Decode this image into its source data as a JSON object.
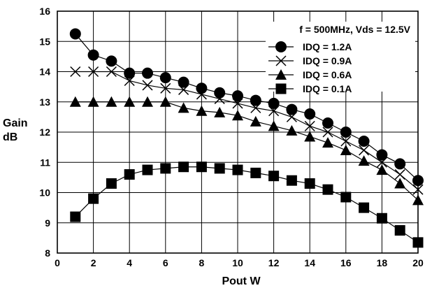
{
  "chart_data": {
    "type": "line",
    "title": "",
    "xlabel": "Pout W",
    "ylabel_line1": "Gain",
    "ylabel_line2": "dB",
    "xlim": [
      0,
      20
    ],
    "ylim": [
      8,
      16
    ],
    "x_ticks": [
      0,
      2,
      4,
      6,
      8,
      10,
      12,
      14,
      16,
      18,
      20
    ],
    "y_ticks": [
      8,
      9,
      10,
      11,
      12,
      13,
      14,
      15,
      16
    ],
    "grid": true,
    "legend_position": "top-right",
    "legend_title": "f = 500MHz, Vds = 12.5V",
    "series": [
      {
        "name": "IDQ = 1.2A",
        "marker": "circle",
        "x": [
          1,
          2,
          3,
          4,
          5,
          6,
          7,
          8,
          9,
          10,
          11,
          12,
          13,
          14,
          15,
          16,
          17,
          18,
          19,
          20
        ],
        "values": [
          15.25,
          14.55,
          14.35,
          13.95,
          13.95,
          13.8,
          13.65,
          13.45,
          13.3,
          13.2,
          13.05,
          12.95,
          12.75,
          12.6,
          12.3,
          12.0,
          11.7,
          11.25,
          10.95,
          10.4
        ]
      },
      {
        "name": "IDQ = 0.9A",
        "marker": "x",
        "x": [
          1,
          2,
          3,
          4,
          5,
          6,
          7,
          8,
          9,
          10,
          11,
          12,
          13,
          14,
          15,
          16,
          17,
          18,
          19,
          20
        ],
        "values": [
          14.0,
          14.0,
          14.0,
          13.7,
          13.55,
          13.45,
          13.4,
          13.25,
          13.1,
          12.95,
          12.8,
          12.7,
          12.5,
          12.2,
          12.0,
          11.7,
          11.4,
          11.0,
          10.6,
          10.1
        ]
      },
      {
        "name": "IDQ = 0.6A",
        "marker": "triangle",
        "x": [
          1,
          2,
          3,
          4,
          5,
          6,
          7,
          8,
          9,
          10,
          11,
          12,
          13,
          14,
          15,
          16,
          17,
          18,
          19,
          20
        ],
        "values": [
          13.0,
          13.0,
          13.0,
          13.0,
          13.0,
          13.0,
          12.8,
          12.7,
          12.65,
          12.55,
          12.35,
          12.2,
          12.05,
          11.85,
          11.65,
          11.4,
          11.05,
          10.75,
          10.3,
          9.75
        ]
      },
      {
        "name": "IDQ = 0.1A",
        "marker": "square",
        "x": [
          1,
          2,
          3,
          4,
          5,
          6,
          7,
          8,
          9,
          10,
          11,
          12,
          13,
          14,
          15,
          16,
          17,
          18,
          19,
          20
        ],
        "values": [
          9.2,
          9.8,
          10.3,
          10.6,
          10.75,
          10.8,
          10.85,
          10.85,
          10.8,
          10.75,
          10.65,
          10.55,
          10.4,
          10.3,
          10.1,
          9.85,
          9.5,
          9.15,
          8.75,
          8.35
        ]
      }
    ]
  }
}
